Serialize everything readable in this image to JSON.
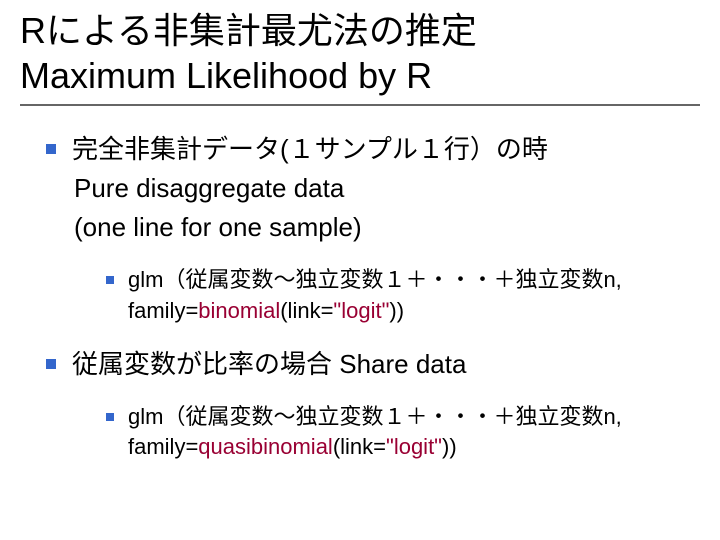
{
  "colors": {
    "bullet": "#3366cc",
    "accent": "#990033",
    "text": "#000000",
    "rule": "#666666",
    "background": "#ffffff"
  },
  "title": {
    "line1": "Rによる非集計最尤法の推定",
    "line2": "Maximum Likelihood by R"
  },
  "items": [
    {
      "line1": "完全非集計データ(１サンプル１行）の時",
      "line2": "Pure disaggregate data",
      "line3": "(one line for one sample)",
      "sub": {
        "line1_pre": "glm（従属変数～独立変数１＋・・・＋独立変数n, family=",
        "line1_acc": "binomial",
        "line1_mid": "(link=",
        "line1_acc2": "\"logit\"",
        "line1_post": "))"
      }
    },
    {
      "line1": "従属変数が比率の場合 Share data",
      "sub": {
        "line1_pre": "glm（従属変数～独立変数１＋・・・＋独立変数n, family=",
        "line1_acc": "quasibinomial",
        "line1_mid": "(link=",
        "line1_acc2": "\"logit\"",
        "line1_post": "))"
      }
    }
  ]
}
